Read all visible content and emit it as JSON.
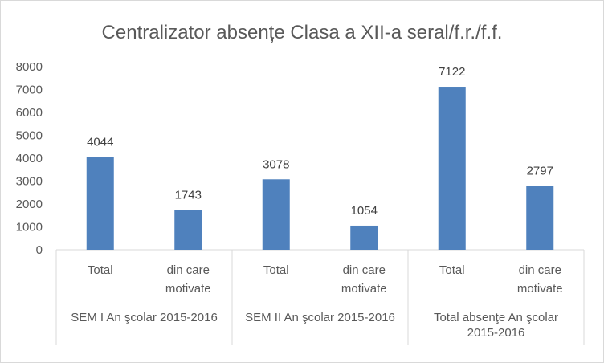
{
  "chart_data": {
    "type": "bar",
    "title": "Centralizator absențe Clasa a XII-a seral/f.r./f.f.",
    "xlabel": "",
    "ylabel": "",
    "ylim": [
      0,
      8000
    ],
    "yticks": [
      "0",
      "1000",
      "2000",
      "3000",
      "4000",
      "5000",
      "6000",
      "7000",
      "8000"
    ],
    "ytick_values": [
      0,
      1000,
      2000,
      3000,
      4000,
      5000,
      6000,
      7000,
      8000
    ],
    "grid": false,
    "legend": "none",
    "bar_color": "#4f81bd",
    "groups": [
      {
        "label": [
          "SEM I An şcolar 2015-2016"
        ],
        "categories": [
          [
            "Total"
          ],
          [
            "din care",
            "motivate"
          ]
        ],
        "values": [
          4044,
          1743
        ]
      },
      {
        "label": [
          "SEM II An şcolar 2015-2016"
        ],
        "categories": [
          [
            "Total"
          ],
          [
            "din care",
            "motivate"
          ]
        ],
        "values": [
          3078,
          1054
        ]
      },
      {
        "label": [
          "Total absenţe An şcolar",
          "2015-2016"
        ],
        "categories": [
          [
            "Total"
          ],
          [
            "din care",
            "motivate"
          ]
        ],
        "values": [
          7122,
          2797
        ]
      }
    ],
    "data_labels": [
      "4044",
      "1743",
      "3078",
      "1054",
      "7122",
      "2797"
    ]
  }
}
